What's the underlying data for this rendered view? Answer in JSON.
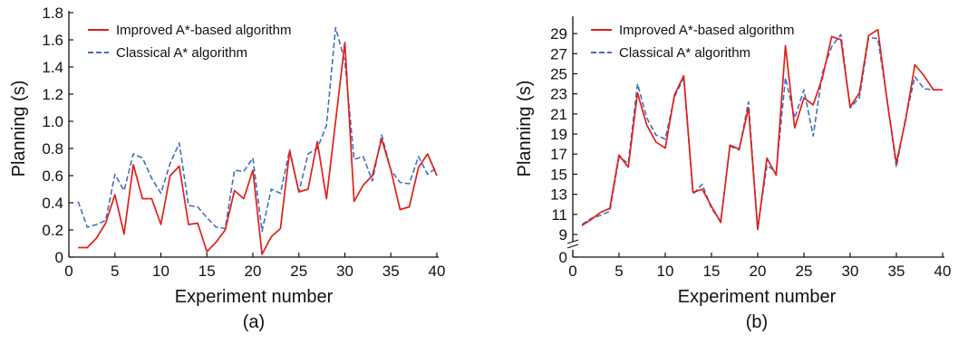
{
  "colors": {
    "improved": "#e0201b",
    "classical": "#3f6fc0",
    "axis": "#111111"
  },
  "chart_data": [
    {
      "type": "line",
      "caption": "(a)",
      "xlabel": "Experiment number",
      "ylabel": "Planning (s)",
      "xlim": [
        0,
        40
      ],
      "ylim": [
        0,
        1.8
      ],
      "xticks": [
        0,
        5,
        10,
        15,
        20,
        25,
        30,
        35,
        40
      ],
      "yticks": [
        0,
        0.2,
        0.4,
        0.6,
        0.8,
        1.0,
        1.2,
        1.4,
        1.6,
        1.8
      ],
      "ytick_labels": [
        "0",
        "0.2",
        "0.4",
        "0.6",
        "0.8",
        "1.0",
        "1.2",
        "1.4",
        "1.6",
        "1.8"
      ],
      "grid": false,
      "legend": "top-left",
      "x": [
        1,
        2,
        3,
        4,
        5,
        6,
        7,
        8,
        9,
        10,
        11,
        12,
        13,
        14,
        15,
        16,
        17,
        18,
        19,
        20,
        21,
        22,
        23,
        24,
        25,
        26,
        27,
        28,
        29,
        30,
        31,
        32,
        33,
        34,
        35,
        36,
        37,
        38,
        39,
        40
      ],
      "series": [
        {
          "name": "Improved A*-based algorithm",
          "style": "solid",
          "values": [
            0.07,
            0.07,
            0.14,
            0.25,
            0.46,
            0.17,
            0.68,
            0.43,
            0.43,
            0.24,
            0.6,
            0.67,
            0.24,
            0.25,
            0.04,
            0.11,
            0.2,
            0.49,
            0.43,
            0.64,
            0.02,
            0.15,
            0.21,
            0.78,
            0.48,
            0.5,
            0.85,
            0.43,
            1.0,
            1.58,
            0.41,
            0.53,
            0.6,
            0.87,
            0.64,
            0.35,
            0.37,
            0.66,
            0.76,
            0.6
          ]
        },
        {
          "name": "Classical A* algorithm",
          "style": "dashed",
          "values": [
            0.41,
            0.22,
            0.24,
            0.27,
            0.61,
            0.49,
            0.76,
            0.73,
            0.58,
            0.47,
            0.69,
            0.84,
            0.38,
            0.37,
            0.29,
            0.22,
            0.21,
            0.64,
            0.63,
            0.73,
            0.19,
            0.5,
            0.47,
            0.79,
            0.48,
            0.76,
            0.8,
            0.97,
            1.69,
            1.44,
            0.72,
            0.74,
            0.56,
            0.9,
            0.64,
            0.55,
            0.54,
            0.74,
            0.61,
            0.66
          ]
        }
      ]
    },
    {
      "type": "line",
      "caption": "(b)",
      "xlabel": "Experiment number",
      "ylabel": "Planning (s)",
      "xlim": [
        0,
        40
      ],
      "ylim": [
        9,
        30
      ],
      "y_axis_break": [
        0,
        9
      ],
      "xticks": [
        0,
        5,
        10,
        15,
        20,
        25,
        30,
        35,
        40
      ],
      "yticks": [
        0,
        9,
        11,
        13,
        15,
        17,
        19,
        21,
        23,
        25,
        27,
        29
      ],
      "ytick_labels": [
        "0",
        "9",
        "11",
        "13",
        "15",
        "17",
        "19",
        "21",
        "23",
        "25",
        "27",
        "29"
      ],
      "grid": false,
      "legend": "top-left",
      "x": [
        1,
        2,
        3,
        4,
        5,
        6,
        7,
        8,
        9,
        10,
        11,
        12,
        13,
        14,
        15,
        16,
        17,
        18,
        19,
        20,
        21,
        22,
        23,
        24,
        25,
        26,
        27,
        28,
        29,
        30,
        31,
        32,
        33,
        34,
        35,
        36,
        37,
        38,
        39,
        40
      ],
      "series": [
        {
          "name": "Improved A*-based algorithm",
          "style": "solid",
          "values": [
            9.9,
            10.5,
            11.2,
            11.6,
            16.9,
            15.7,
            23.1,
            19.9,
            18.2,
            17.6,
            22.9,
            24.8,
            13.2,
            13.5,
            11.8,
            10.2,
            17.9,
            17.5,
            21.6,
            9.5,
            16.6,
            14.9,
            27.8,
            19.6,
            22.6,
            21.9,
            24.6,
            28.7,
            28.4,
            21.7,
            23.1,
            28.8,
            29.4,
            22.3,
            16.1,
            20.4,
            25.9,
            24.8,
            23.4,
            23.4
          ]
        },
        {
          "name": "Classical A* algorithm",
          "style": "dashed",
          "values": [
            10.0,
            10.6,
            10.9,
            11.3,
            16.7,
            16.1,
            24.0,
            20.6,
            18.9,
            18.5,
            22.7,
            24.6,
            13.0,
            14.0,
            11.6,
            10.3,
            17.8,
            17.4,
            22.2,
            9.6,
            15.9,
            15.2,
            24.6,
            20.6,
            23.4,
            18.8,
            25.1,
            27.7,
            28.9,
            21.6,
            22.6,
            28.6,
            28.5,
            22.4,
            15.7,
            20.6,
            24.7,
            23.5,
            23.4,
            23.4
          ]
        }
      ]
    }
  ]
}
